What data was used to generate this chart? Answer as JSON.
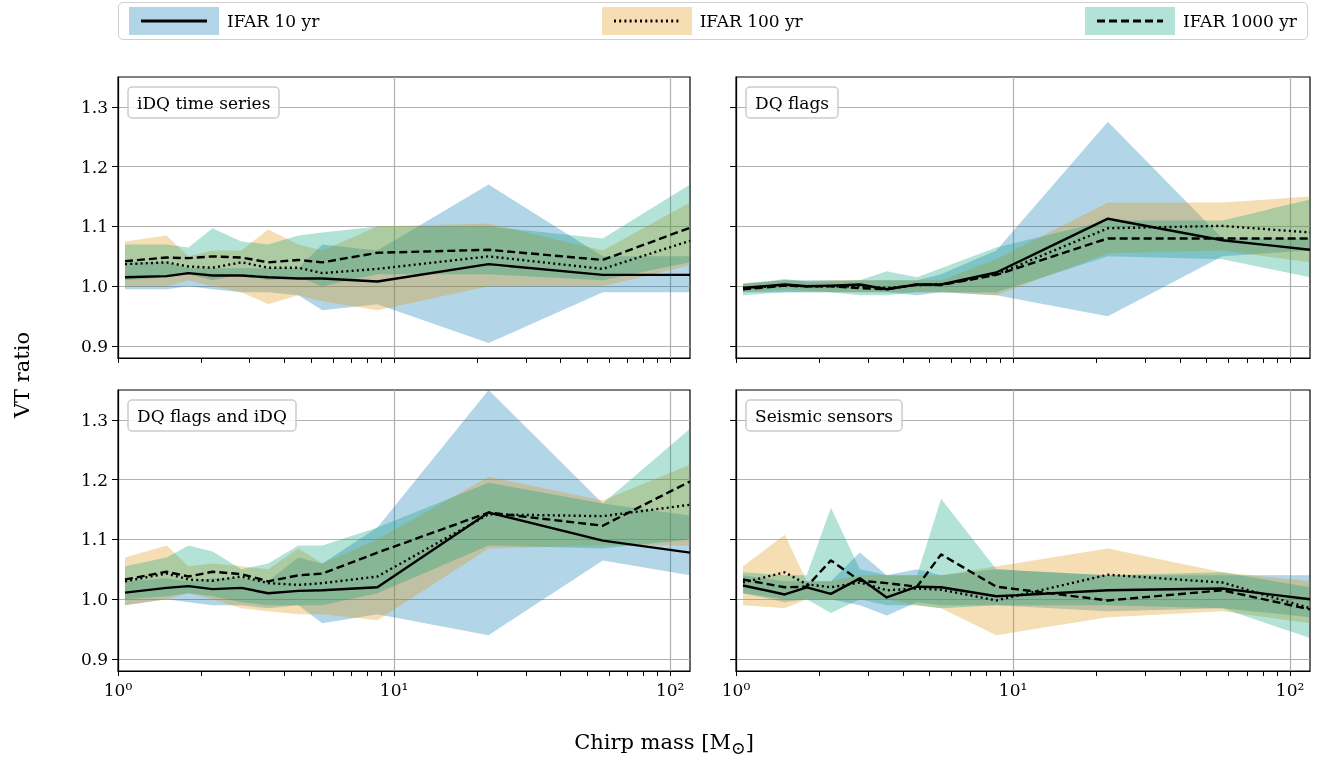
{
  "chart_data": [
    {
      "type": "line",
      "title": "iDQ time series",
      "colors": [
        "#b3d5e8",
        "#f5deb3",
        "#b3e2d6"
      ],
      "ylabel": "VT ratio",
      "legend": "top",
      "log": "x",
      "grid": true,
      "marker": "none",
      "tick_labels": "y",
      "xlim": [
        1,
        118
      ],
      "ylim": [
        0.88,
        1.35
      ],
      "xticks": [
        {
          "value": 1,
          "label": null
        },
        {
          "value": 2,
          "label": null
        },
        {
          "value": 3,
          "label": null
        },
        {
          "value": 4,
          "label": null
        },
        {
          "value": 5,
          "label": null
        },
        {
          "value": 6,
          "label": null
        },
        {
          "value": 7,
          "label": null
        },
        {
          "value": 8,
          "label": null
        },
        {
          "value": 9,
          "label": null
        },
        {
          "value": 10,
          "label": null
        },
        {
          "value": 20,
          "label": null
        },
        {
          "value": 30,
          "label": null
        },
        {
          "value": 40,
          "label": null
        },
        {
          "value": 50,
          "label": null
        },
        {
          "value": 60,
          "label": null
        },
        {
          "value": 70,
          "label": null
        },
        {
          "value": 80,
          "label": null
        },
        {
          "value": 90,
          "label": null
        },
        {
          "value": 100,
          "label": null
        }
      ],
      "yticks": [
        0.9,
        {
          "value": 1,
          "label": "1.0"
        },
        1.1,
        1.2,
        1.3
      ],
      "x": [
        1.06,
        1.5,
        1.8,
        2.2,
        2.8,
        3.5,
        4.5,
        5.5,
        8.7,
        22,
        57,
        118
      ],
      "series": [
        {
          "name": "IFAR 10 yr",
          "color": "#000000",
          "line_style": "solid",
          "values": [
            1.015,
            1.017,
            1.022,
            1.018,
            1.018,
            1.015,
            1.013,
            1.013,
            1.008,
            1.037,
            1.019,
            1.019
          ],
          "upper": [
            1.04,
            1.04,
            1.03,
            1.03,
            1.03,
            1.03,
            1.03,
            1.07,
            1.06,
            1.17,
            1.05,
            1.05
          ],
          "lower": [
            0.995,
            0.995,
            1.0,
            0.995,
            0.99,
            0.99,
            0.985,
            0.96,
            0.97,
            0.905,
            0.99,
            0.99
          ]
        },
        {
          "name": "IFAR 100 yr",
          "color": "#000000",
          "line_style": "dotted",
          "values": [
            1.037,
            1.04,
            1.033,
            1.031,
            1.04,
            1.031,
            1.031,
            1.022,
            1.029,
            1.05,
            1.029,
            1.076
          ],
          "upper": [
            1.075,
            1.085,
            1.05,
            1.06,
            1.06,
            1.095,
            1.07,
            1.06,
            1.1,
            1.105,
            1.06,
            1.14
          ],
          "lower": [
            1.0,
            1.0,
            1.01,
            1.0,
            0.99,
            0.97,
            0.985,
            0.975,
            0.96,
            1.0,
            1.0,
            1.035
          ]
        },
        {
          "name": "IFAR 1000 yr",
          "color": "#000000",
          "line_style": "dashed",
          "values": [
            1.042,
            1.048,
            1.047,
            1.05,
            1.048,
            1.04,
            1.044,
            1.04,
            1.056,
            1.061,
            1.044,
            1.098
          ],
          "upper": [
            1.07,
            1.07,
            1.065,
            1.097,
            1.075,
            1.07,
            1.085,
            1.09,
            1.1,
            1.1,
            1.08,
            1.17
          ],
          "lower": [
            1.01,
            1.015,
            1.02,
            1.01,
            1.02,
            1.01,
            1.015,
            1.0,
            1.02,
            1.02,
            1.01,
            1.04
          ]
        }
      ]
    },
    {
      "type": "line",
      "title": "DQ flags",
      "colors": [
        "#b3d5e8",
        "#f5deb3",
        "#b3e2d6"
      ],
      "log": "x",
      "grid": true,
      "marker": "none",
      "tick_labels": false,
      "xlim": [
        1,
        118
      ],
      "ylim": [
        0.88,
        1.35
      ],
      "xticks": [
        {
          "value": 1,
          "label": null
        },
        {
          "value": 2,
          "label": null
        },
        {
          "value": 3,
          "label": null
        },
        {
          "value": 4,
          "label": null
        },
        {
          "value": 5,
          "label": null
        },
        {
          "value": 6,
          "label": null
        },
        {
          "value": 7,
          "label": null
        },
        {
          "value": 8,
          "label": null
        },
        {
          "value": 9,
          "label": null
        },
        {
          "value": 10,
          "label": null
        },
        {
          "value": 20,
          "label": null
        },
        {
          "value": 30,
          "label": null
        },
        {
          "value": 40,
          "label": null
        },
        {
          "value": 50,
          "label": null
        },
        {
          "value": 60,
          "label": null
        },
        {
          "value": 70,
          "label": null
        },
        {
          "value": 80,
          "label": null
        },
        {
          "value": 90,
          "label": null
        },
        {
          "value": 100,
          "label": null
        }
      ],
      "yticks": [
        {
          "value": 0.9,
          "label": null
        },
        {
          "value": 1,
          "label": null
        },
        {
          "value": 1.1,
          "label": null
        },
        {
          "value": 1.2,
          "label": null
        },
        {
          "value": 1.3,
          "label": null
        }
      ],
      "x": [
        1.06,
        1.5,
        1.8,
        2.2,
        2.8,
        3.5,
        4.5,
        5.5,
        8.7,
        22,
        57,
        118
      ],
      "series": [
        {
          "color": "#000000",
          "line_style": "solid",
          "values": [
            0.997,
            1.003,
            1.0,
            1.001,
            1.003,
            0.995,
            1.003,
            1.003,
            1.023,
            1.113,
            1.077,
            1.061
          ],
          "upper": [
            1.005,
            1.01,
            1.01,
            1.01,
            1.01,
            1.01,
            1.01,
            1.02,
            1.06,
            1.275,
            1.08,
            1.08
          ],
          "lower": [
            0.99,
            0.99,
            0.99,
            0.99,
            0.99,
            0.99,
            0.985,
            0.99,
            0.985,
            0.95,
            1.05,
            1.06
          ]
        },
        {
          "color": "#000000",
          "line_style": "dotted",
          "values": [
            0.997,
            1.001,
            1.0,
            1.0,
            1.0,
            0.997,
            1.002,
            1.003,
            1.02,
            1.097,
            1.101,
            1.09
          ],
          "upper": [
            1.005,
            1.01,
            1.008,
            1.01,
            1.01,
            1.01,
            1.01,
            1.01,
            1.045,
            1.14,
            1.14,
            1.15
          ],
          "lower": [
            0.99,
            0.995,
            0.993,
            0.99,
            0.99,
            0.99,
            0.99,
            0.99,
            0.985,
            1.055,
            1.06,
            1.04
          ]
        },
        {
          "color": "#000000",
          "line_style": "dashed",
          "values": [
            0.995,
            1.001,
            1.0,
            1.0,
            0.997,
            0.995,
            1.003,
            1.002,
            1.019,
            1.08,
            1.08,
            1.08
          ],
          "upper": [
            1.003,
            1.012,
            1.008,
            1.008,
            1.01,
            1.025,
            1.015,
            1.03,
            1.065,
            1.11,
            1.11,
            1.145
          ],
          "lower": [
            0.985,
            0.99,
            0.99,
            0.99,
            0.985,
            0.985,
            0.99,
            0.99,
            0.99,
            1.05,
            1.045,
            1.015
          ]
        }
      ]
    },
    {
      "type": "line",
      "title": "DQ flags and iDQ",
      "colors": [
        "#b3d5e8",
        "#f5deb3",
        "#b3e2d6"
      ],
      "xlabel": "Chirp mass [M$_{⊙}$]",
      "log": "x",
      "grid": true,
      "marker": "none",
      "xlim": [
        1,
        118
      ],
      "ylim": [
        0.88,
        1.35
      ],
      "xticks": [
        {
          "value": 1,
          "label": "10⁰"
        },
        {
          "value": 2,
          "label": null
        },
        {
          "value": 3,
          "label": null
        },
        {
          "value": 4,
          "label": null
        },
        {
          "value": 5,
          "label": null
        },
        {
          "value": 6,
          "label": null
        },
        {
          "value": 7,
          "label": null
        },
        {
          "value": 8,
          "label": null
        },
        {
          "value": 9,
          "label": null
        },
        {
          "value": 10,
          "label": "10¹"
        },
        {
          "value": 20,
          "label": null
        },
        {
          "value": 30,
          "label": null
        },
        {
          "value": 40,
          "label": null
        },
        {
          "value": 50,
          "label": null
        },
        {
          "value": 60,
          "label": null
        },
        {
          "value": 70,
          "label": null
        },
        {
          "value": 80,
          "label": null
        },
        {
          "value": 90,
          "label": null
        },
        {
          "value": 100,
          "label": "10²"
        }
      ],
      "yticks": [
        0.9,
        {
          "value": 1,
          "label": "1.0"
        },
        1.1,
        1.2,
        1.3
      ],
      "x": [
        1.06,
        1.5,
        1.8,
        2.2,
        2.8,
        3.5,
        4.5,
        5.5,
        8.7,
        22,
        57,
        118
      ],
      "series": [
        {
          "color": "#000000",
          "line_style": "solid",
          "values": [
            1.011,
            1.019,
            1.022,
            1.017,
            1.019,
            1.01,
            1.014,
            1.015,
            1.02,
            1.145,
            1.098,
            1.078
          ],
          "upper": [
            1.03,
            1.035,
            1.03,
            1.035,
            1.035,
            1.03,
            1.07,
            1.06,
            1.12,
            1.35,
            1.16,
            1.14
          ],
          "lower": [
            0.99,
            1.0,
            0.995,
            0.99,
            0.99,
            0.985,
            0.99,
            0.96,
            0.975,
            0.94,
            1.065,
            1.04
          ]
        },
        {
          "color": "#000000",
          "line_style": "dotted",
          "values": [
            1.03,
            1.043,
            1.033,
            1.031,
            1.038,
            1.027,
            1.024,
            1.027,
            1.038,
            1.142,
            1.139,
            1.158
          ],
          "upper": [
            1.07,
            1.09,
            1.055,
            1.06,
            1.055,
            1.05,
            1.085,
            1.06,
            1.1,
            1.205,
            1.165,
            1.225
          ],
          "lower": [
            0.99,
            1.0,
            1.01,
            1.0,
            0.985,
            0.98,
            0.975,
            0.975,
            0.965,
            1.085,
            1.09,
            1.09
          ]
        },
        {
          "color": "#000000",
          "line_style": "dashed",
          "values": [
            1.033,
            1.046,
            1.038,
            1.046,
            1.042,
            1.03,
            1.04,
            1.043,
            1.078,
            1.145,
            1.123,
            1.197
          ],
          "upper": [
            1.055,
            1.07,
            1.09,
            1.08,
            1.05,
            1.06,
            1.09,
            1.09,
            1.12,
            1.195,
            1.16,
            1.285
          ],
          "lower": [
            1.0,
            1.005,
            1.01,
            1.005,
            0.995,
            0.99,
            0.99,
            0.99,
            1.01,
            1.09,
            1.085,
            1.1
          ]
        }
      ]
    },
    {
      "type": "line",
      "title": "Seismic sensors",
      "colors": [
        "#b3d5e8",
        "#f5deb3",
        "#b3e2d6"
      ],
      "log": "x",
      "grid": true,
      "marker": "none",
      "tick_labels": "x",
      "xlim": [
        1,
        118
      ],
      "ylim": [
        0.88,
        1.35
      ],
      "xticks": [
        {
          "value": 1,
          "label": "10⁰"
        },
        {
          "value": 2,
          "label": null
        },
        {
          "value": 3,
          "label": null
        },
        {
          "value": 4,
          "label": null
        },
        {
          "value": 5,
          "label": null
        },
        {
          "value": 6,
          "label": null
        },
        {
          "value": 7,
          "label": null
        },
        {
          "value": 8,
          "label": null
        },
        {
          "value": 9,
          "label": null
        },
        {
          "value": 10,
          "label": "10¹"
        },
        {
          "value": 20,
          "label": null
        },
        {
          "value": 30,
          "label": null
        },
        {
          "value": 40,
          "label": null
        },
        {
          "value": 50,
          "label": null
        },
        {
          "value": 60,
          "label": null
        },
        {
          "value": 70,
          "label": null
        },
        {
          "value": 80,
          "label": null
        },
        {
          "value": 90,
          "label": null
        },
        {
          "value": 100,
          "label": "10²"
        }
      ],
      "yticks": [
        {
          "value": 0.9,
          "label": null
        },
        {
          "value": 1,
          "label": null
        },
        {
          "value": 1.1,
          "label": null
        },
        {
          "value": 1.2,
          "label": null
        },
        {
          "value": 1.3,
          "label": null
        }
      ],
      "x": [
        1.06,
        1.5,
        1.8,
        2.2,
        2.8,
        3.5,
        4.5,
        5.5,
        8.7,
        22,
        57,
        118
      ],
      "series": [
        {
          "color": "#000000",
          "line_style": "solid",
          "values": [
            1.023,
            1.008,
            1.02,
            1.009,
            1.035,
            1.003,
            1.021,
            1.02,
            1.005,
            1.015,
            1.018,
            1.0
          ],
          "upper": [
            1.04,
            1.03,
            1.03,
            1.03,
            1.078,
            1.04,
            1.05,
            1.04,
            1.05,
            1.04,
            1.04,
            1.04
          ],
          "lower": [
            1.01,
            0.995,
            1.0,
            1.0,
            0.99,
            0.973,
            0.995,
            0.99,
            0.99,
            0.98,
            0.985,
            0.97
          ]
        },
        {
          "color": "#000000",
          "line_style": "dotted",
          "values": [
            1.028,
            1.045,
            1.025,
            1.02,
            1.028,
            1.015,
            1.018,
            1.016,
            0.998,
            1.041,
            1.028,
            0.985
          ],
          "upper": [
            1.055,
            1.108,
            1.03,
            1.03,
            1.04,
            1.04,
            1.04,
            1.04,
            1.055,
            1.085,
            1.045,
            1.03
          ],
          "lower": [
            0.99,
            0.985,
            1.0,
            1.0,
            1.0,
            1.0,
            0.99,
            0.985,
            0.94,
            0.97,
            0.98,
            0.96
          ]
        },
        {
          "color": "#000000",
          "line_style": "dashed",
          "values": [
            1.033,
            1.02,
            1.021,
            1.065,
            1.031,
            1.027,
            1.021,
            1.075,
            1.021,
            0.998,
            1.015,
            0.983
          ],
          "upper": [
            1.045,
            1.04,
            1.04,
            1.153,
            1.05,
            1.04,
            1.04,
            1.168,
            1.05,
            1.04,
            1.045,
            1.02
          ],
          "lower": [
            1.01,
            1.0,
            1.0,
            0.977,
            1.0,
            0.99,
            0.99,
            0.985,
            0.99,
            0.99,
            0.985,
            0.935
          ]
        }
      ]
    }
  ]
}
